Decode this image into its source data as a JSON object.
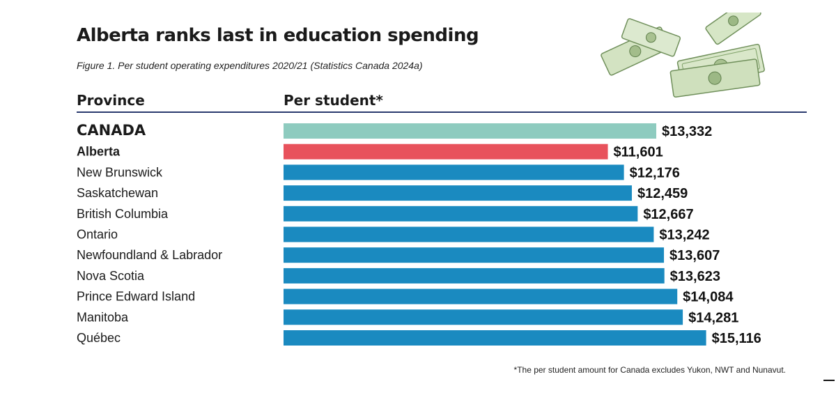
{
  "chart_data": {
    "type": "bar",
    "orientation": "horizontal",
    "title": "Alberta ranks last in education spending",
    "subtitle": "Figure 1. Per student operating expenditures 2020/21 (Statistics Canada 2024a)",
    "column_headers": {
      "category": "Province",
      "value": "Per student*"
    },
    "categories": [
      "CANADA",
      "Alberta",
      "New Brunswick",
      "Saskatchewan",
      "British Columbia",
      "Ontario",
      "Newfoundland & Labrador",
      "Nova Scotia",
      "Prince Edward Island",
      "Manitoba",
      "Québec"
    ],
    "values": [
      13332,
      11601,
      12176,
      12459,
      12667,
      13242,
      13607,
      13623,
      14084,
      14281,
      15116
    ],
    "value_labels": [
      "$13,332",
      "$11,601",
      "$12,176",
      "$12,459",
      "$12,667",
      "$13,242",
      "$13,607",
      "$13,623",
      "$14,084",
      "$14,281",
      "$15,116"
    ],
    "bar_colors": [
      "#8ecbbf",
      "#e8525c",
      "#1a8ac0",
      "#1a8ac0",
      "#1a8ac0",
      "#1a8ac0",
      "#1a8ac0",
      "#1a8ac0",
      "#1a8ac0",
      "#1a8ac0",
      "#1a8ac0"
    ],
    "emphasized_categories": [
      "CANADA",
      "Alberta"
    ],
    "footnote": "*The per student amount for Canada excludes Yukon, NWT and Nunavut.",
    "grid": false,
    "legend": "none"
  },
  "decoration": {
    "icon": "money-stack-icon"
  }
}
